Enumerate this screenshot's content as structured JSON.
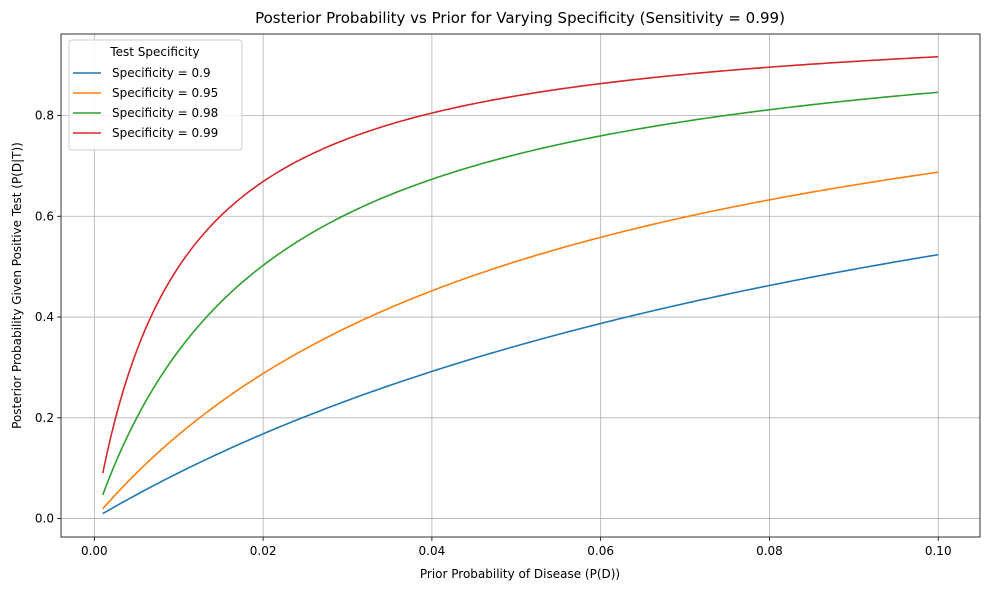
{
  "chart_data": {
    "type": "line",
    "title": "Posterior Probability vs Prior for Varying Specificity (Sensitivity = 0.99)",
    "xlabel": "Prior Probability of Disease (P(D))",
    "ylabel": "Posterior Probability Given Positive Test (P(D|T))",
    "xlim": [
      -0.00395,
      0.10495
    ],
    "ylim": [
      -0.0366,
      0.9618
    ],
    "xticks": [
      0.0,
      0.02,
      0.04,
      0.06,
      0.08,
      0.1
    ],
    "xtick_labels": [
      "0.00",
      "0.02",
      "0.04",
      "0.06",
      "0.08",
      "0.10"
    ],
    "yticks": [
      0.0,
      0.2,
      0.4,
      0.6,
      0.8
    ],
    "ytick_labels": [
      "0.0",
      "0.2",
      "0.4",
      "0.6",
      "0.8"
    ],
    "grid": true,
    "legend": {
      "title": "Test Specificity",
      "position": "top-left"
    },
    "sensitivity": 0.99,
    "x_range": [
      0.001,
      0.1
    ],
    "series": [
      {
        "name": "Specificity = 0.9",
        "specificity": 0.9,
        "color": "#1f77b4"
      },
      {
        "name": "Specificity = 0.95",
        "specificity": 0.95,
        "color": "#ff7f0e"
      },
      {
        "name": "Specificity = 0.98",
        "specificity": 0.98,
        "color": "#2ca02c"
      },
      {
        "name": "Specificity = 0.99",
        "specificity": 0.99,
        "color": "#d62728"
      }
    ]
  }
}
